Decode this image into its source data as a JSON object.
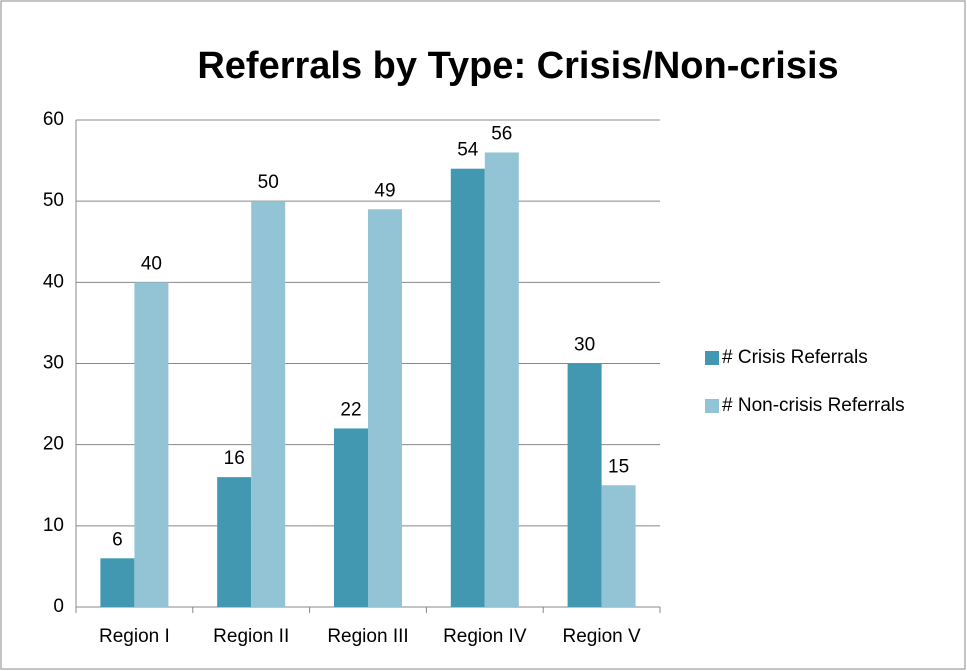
{
  "chart_data": {
    "type": "bar",
    "title": "Referrals by Type: Crisis/Non-crisis",
    "categories": [
      "Region I",
      "Region II",
      "Region III",
      "Region IV",
      "Region V"
    ],
    "series": [
      {
        "name": "# Crisis Referrals",
        "color": "#4198b0",
        "values": [
          6,
          16,
          22,
          54,
          30
        ]
      },
      {
        "name": "# Non-crisis Referrals",
        "color": "#93c4d5",
        "values": [
          40,
          50,
          49,
          56,
          15
        ]
      }
    ],
    "ylim": [
      0,
      60
    ],
    "yticks": [
      0,
      10,
      20,
      30,
      40,
      50,
      60
    ],
    "grid": true,
    "legend": "right"
  }
}
